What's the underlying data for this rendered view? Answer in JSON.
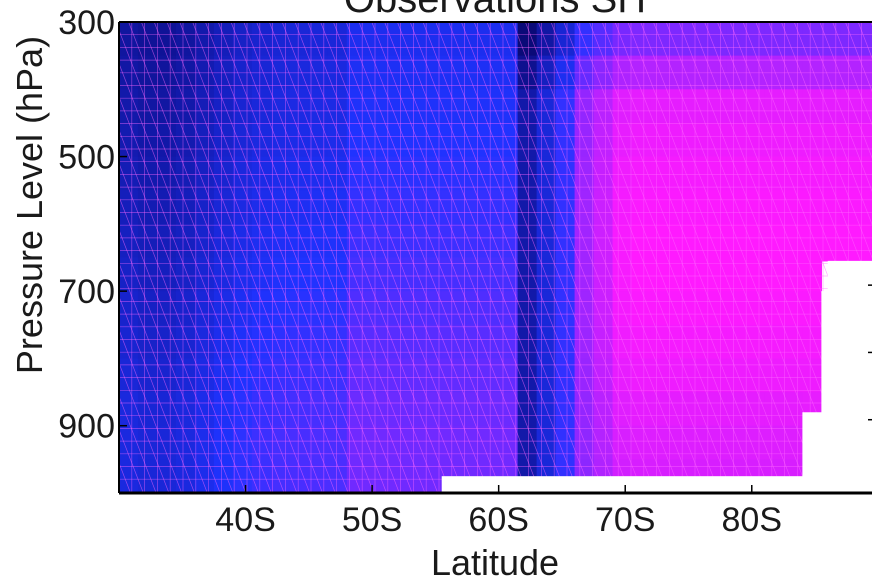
{
  "chart_data": {
    "type": "heatmap",
    "title": "Observations SH",
    "xlabel": "Latitude",
    "ylabel": "Pressure Level (hPa)",
    "xlim": [
      30,
      89.5
    ],
    "ylim": [
      300,
      1000
    ],
    "y_inverted": true,
    "x_ticks": [
      40,
      50,
      60,
      70,
      80
    ],
    "x_tick_labels": [
      "40S",
      "50S",
      "60S",
      "70S",
      "80S"
    ],
    "y_ticks": [
      300,
      500,
      700,
      900
    ],
    "y_tick_labels": [
      "300",
      "500",
      "700",
      "900"
    ],
    "grid": false,
    "legend": "none",
    "colors": {
      "low": "#0a0a78",
      "mid": "#1f33ff",
      "high": "#ff1aff",
      "mesh": "#ff66ff",
      "axis": "#000000"
    },
    "valid_region": [
      {
        "lat_max": 89.5,
        "p_max": 655
      },
      {
        "lat_max": 86.0,
        "p_max": 700
      },
      {
        "lat_max": 85.5,
        "p_max": 880
      },
      {
        "lat_max": 84.0,
        "p_max": 975
      },
      {
        "lat_max": 55.5,
        "p_max": 1000
      }
    ],
    "pressure_levels": [
      300,
      350,
      400,
      450,
      500,
      550,
      600,
      650,
      700,
      750,
      800,
      850,
      900,
      950,
      975,
      1000
    ],
    "latitude_columns": [
      30,
      31.5,
      33,
      34.5,
      36,
      37.5,
      39,
      40.5,
      42,
      43.5,
      45,
      46.5,
      48,
      49.5,
      51,
      52.5,
      54,
      55.5,
      57,
      58.5,
      60,
      61.5,
      63,
      64.5,
      66,
      67.5,
      69,
      70.5,
      72,
      73.5,
      75,
      76.5,
      78,
      79.5,
      81,
      82.5,
      84,
      85.5,
      87,
      88.5
    ]
  }
}
